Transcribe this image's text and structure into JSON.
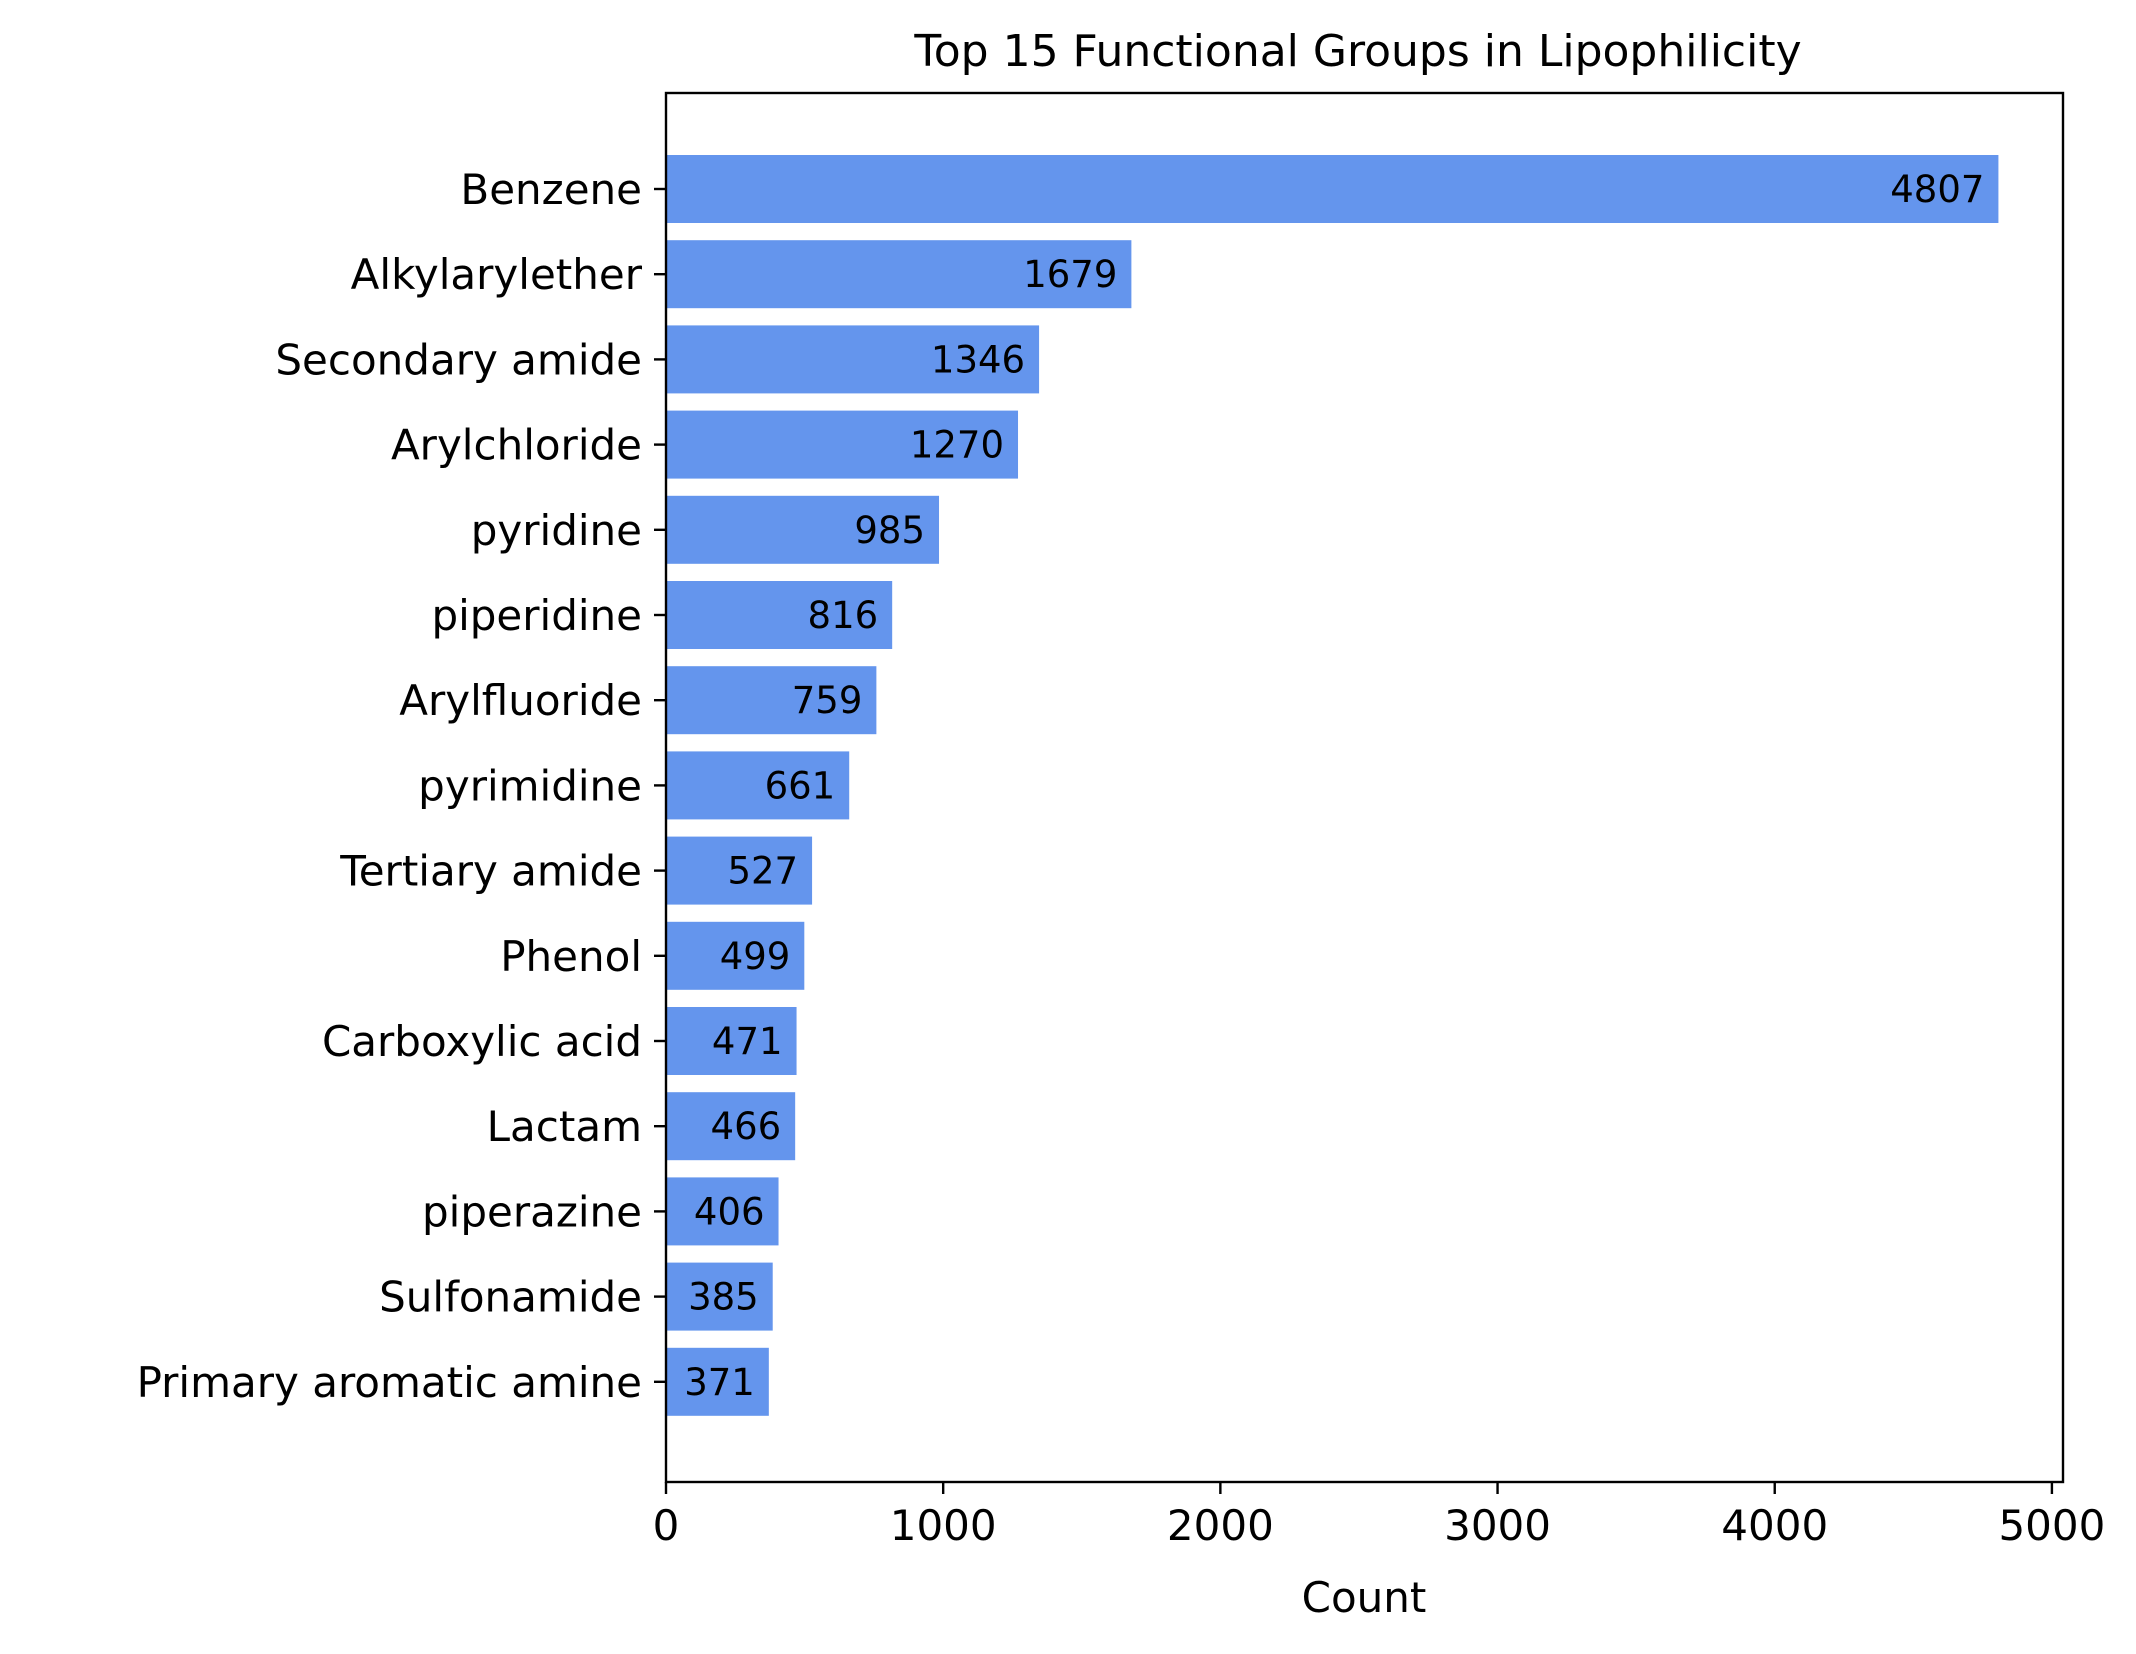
{
  "chart_data": {
    "type": "bar",
    "orientation": "horizontal",
    "title": "Top 15 Functional Groups in Lipophilicity",
    "xlabel": "Count",
    "ylabel": "",
    "xlim": [
      0,
      5040
    ],
    "xticks": [
      "0",
      "1000",
      "2000",
      "3000",
      "4000",
      "5000"
    ],
    "categories": [
      "Benzene",
      "Alkylarylether",
      "Secondary amide",
      "Arylchloride",
      "pyridine",
      "piperidine",
      "Arylfluoride",
      "pyrimidine",
      "Tertiary amide",
      "Phenol",
      "Carboxylic acid",
      "Lactam",
      "piperazine",
      "Sulfonamide",
      "Primary aromatic amine"
    ],
    "values": [
      4807,
      1679,
      1346,
      1270,
      985,
      816,
      759,
      661,
      527,
      499,
      471,
      466,
      406,
      385,
      371
    ],
    "data_labels": [
      "4807",
      "1679",
      "1346",
      "1270",
      "985",
      "816",
      "759",
      "661",
      "527",
      "499",
      "471",
      "466",
      "406",
      "385",
      "371"
    ],
    "bar_color": "#6495ED",
    "grid": false,
    "legend": "none"
  }
}
